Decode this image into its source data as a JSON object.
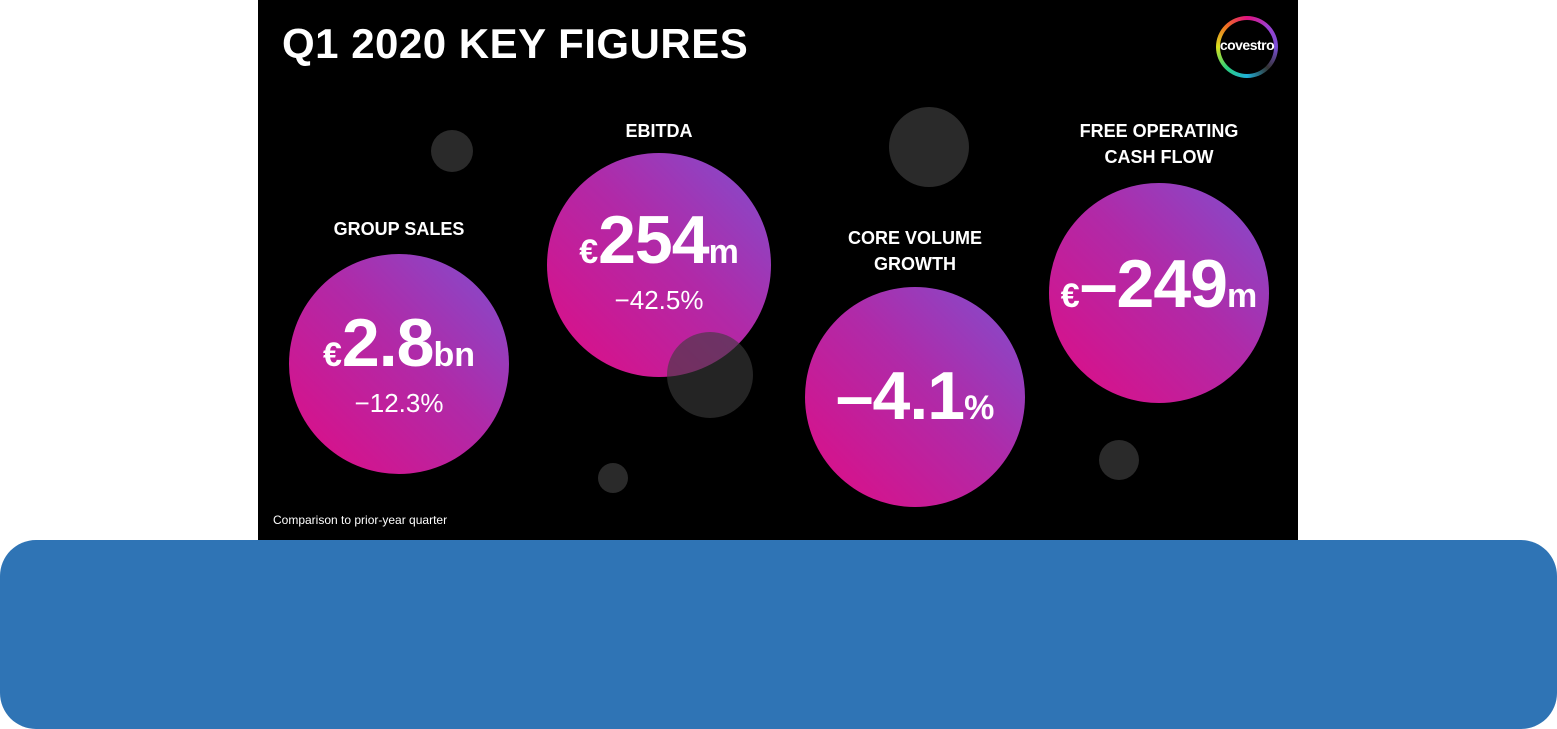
{
  "title": "Q1 2020 KEY FIGURES",
  "logo_text": "covestro",
  "figures": [
    {
      "label": "GROUP SALES",
      "prefix": "€",
      "value": "2.8",
      "unit": "bn",
      "change": "−12.3%"
    },
    {
      "label": "EBITDA",
      "prefix": "€",
      "value": "254",
      "unit": "m",
      "change": "−42.5%"
    },
    {
      "label": "CORE VOLUME GROWTH",
      "prefix": "",
      "value": "–4.1",
      "unit": "%",
      "change": ""
    },
    {
      "label": "FREE OPERATING CASH FLOW",
      "prefix": "€",
      "value": "–249",
      "unit": "m",
      "change": ""
    }
  ],
  "footnote": "Comparison to prior-year quarter",
  "colors": {
    "panel": "#2f74b5",
    "bubble_start": "#e00c84",
    "bubble_end": "#7f4fcf"
  }
}
